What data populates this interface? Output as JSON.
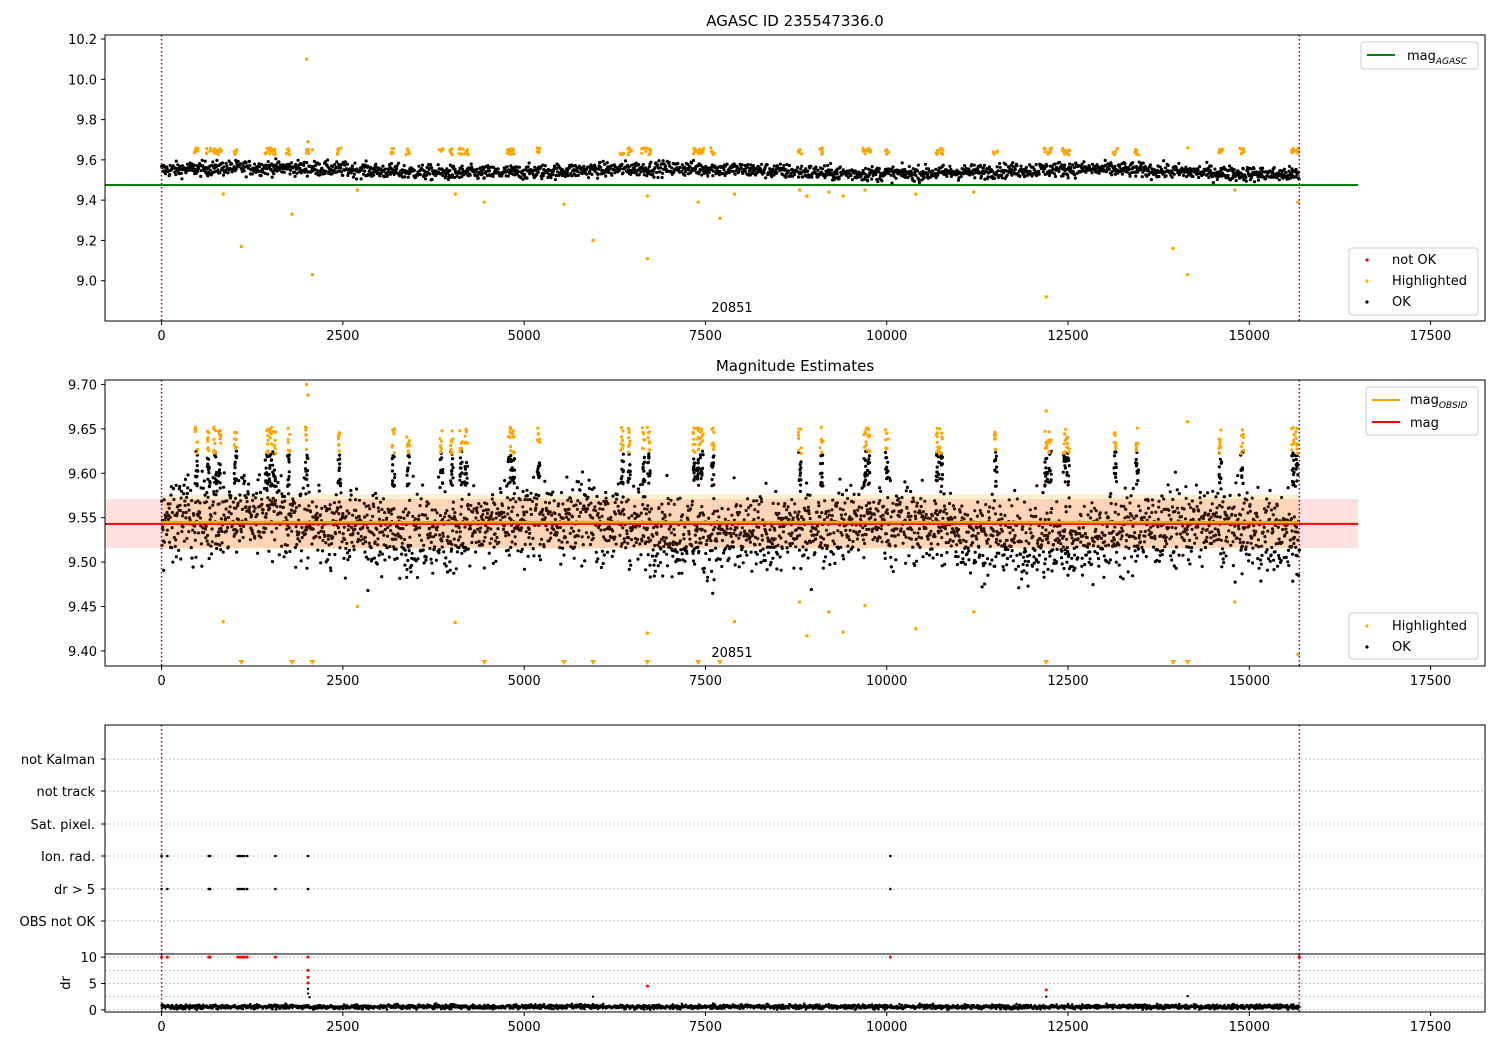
{
  "chart_data": [
    {
      "type": "scatter",
      "title": "AGASC ID 235547336.0",
      "xlabel": "",
      "ylabel": "",
      "xlim": [
        -780,
        18250
      ],
      "ylim": [
        8.8,
        10.22
      ],
      "xticks": [
        0,
        2500,
        5000,
        7500,
        10000,
        12500,
        15000,
        17500
      ],
      "xtick_labels": [
        "0",
        "2500",
        "5000",
        "7500",
        "10000",
        "12500",
        "15000",
        "17500"
      ],
      "yticks": [
        9.0,
        9.2,
        9.4,
        9.6,
        9.8,
        10.0,
        10.2
      ],
      "ytick_labels": [
        "9.0",
        "9.2",
        "9.4",
        "9.6",
        "9.8",
        "10.0",
        "10.2"
      ],
      "vlines": [
        0,
        15690
      ],
      "annotation": "20851",
      "annotation_x": 7830,
      "hline": {
        "label": "mag",
        "label_sub": "AGASC",
        "value": 9.475,
        "x": [
          -780,
          16500
        ],
        "color": "#008000"
      },
      "legend_lines": [
        {
          "label": "mag",
          "sub": "AGASC",
          "color": "#008000"
        }
      ],
      "legend_points": [
        {
          "label": "not OK",
          "color": "#ff0000"
        },
        {
          "label": "Highlighted",
          "color": "#ffa500"
        },
        {
          "label": "OK",
          "color": "#000000"
        }
      ],
      "band": {
        "center": 9.55,
        "range": [
          9.49,
          9.6
        ]
      },
      "highlighted_outliers": [
        [
          2000,
          10.1
        ],
        [
          2020,
          9.69
        ],
        [
          2080,
          9.65
        ],
        [
          850,
          9.43
        ],
        [
          1100,
          9.17
        ],
        [
          1800,
          9.33
        ],
        [
          2080,
          9.03
        ],
        [
          2700,
          9.45
        ],
        [
          4050,
          9.43
        ],
        [
          4450,
          9.39
        ],
        [
          5550,
          9.38
        ],
        [
          5950,
          9.2
        ],
        [
          6700,
          9.11
        ],
        [
          6700,
          9.42
        ],
        [
          7400,
          9.39
        ],
        [
          7700,
          9.31
        ],
        [
          7900,
          9.43
        ],
        [
          8800,
          9.45
        ],
        [
          8900,
          9.42
        ],
        [
          9200,
          9.44
        ],
        [
          9400,
          9.42
        ],
        [
          9700,
          9.45
        ],
        [
          10400,
          9.43
        ],
        [
          11200,
          9.44
        ],
        [
          12200,
          8.92
        ],
        [
          13950,
          9.16
        ],
        [
          14150,
          9.03
        ],
        [
          14150,
          9.66
        ],
        [
          14800,
          9.45
        ],
        [
          15670,
          9.39
        ]
      ],
      "highlighted_clusters": [
        480,
        650,
        740,
        800,
        1020,
        1450,
        1500,
        1550,
        1750,
        2000,
        2450,
        3200,
        3400,
        3860,
        4000,
        4130,
        4200,
        4800,
        4850,
        5200,
        6350,
        6450,
        6650,
        6720,
        7350,
        7400,
        7450,
        7600,
        8800,
        9100,
        9700,
        9750,
        10000,
        10700,
        10750,
        11500,
        12200,
        12250,
        12450,
        12500,
        13150,
        13450,
        14600,
        14900,
        15600,
        15650
      ]
    },
    {
      "type": "scatter",
      "title": "Magnitude Estimates",
      "xlabel": "",
      "ylabel": "",
      "xlim": [
        -780,
        18250
      ],
      "ylim": [
        9.383,
        9.705
      ],
      "xticks": [
        0,
        2500,
        5000,
        7500,
        10000,
        12500,
        15000,
        17500
      ],
      "xtick_labels": [
        "0",
        "2500",
        "5000",
        "7500",
        "10000",
        "12500",
        "15000",
        "17500"
      ],
      "yticks": [
        9.4,
        9.45,
        9.5,
        9.55,
        9.6,
        9.65,
        9.7
      ],
      "ytick_labels": [
        "9.40",
        "9.45",
        "9.50",
        "9.55",
        "9.60",
        "9.65",
        "9.70"
      ],
      "vlines": [
        0,
        15690
      ],
      "annotation": "20851",
      "annotation_x": 7830,
      "mag_line": {
        "label": "mag",
        "value": 9.543,
        "x": [
          -780,
          16500
        ],
        "color": "#ff0000",
        "band": [
          9.516,
          9.571
        ]
      },
      "mag_obsid_line": {
        "label": "mag",
        "label_sub": "OBSID",
        "value": 9.545,
        "x": [
          0,
          15690
        ],
        "color": "#ffa500",
        "band": [
          9.515,
          9.576
        ]
      },
      "legend_lines": [
        {
          "label": "mag",
          "sub": "OBSID",
          "color": "#ffa500"
        },
        {
          "label": "mag",
          "sub": "",
          "color": "#ff0000"
        }
      ],
      "legend_points": [
        {
          "label": "Highlighted",
          "color": "#ffa500"
        },
        {
          "label": "OK",
          "color": "#000000"
        }
      ],
      "band": {
        "center": 9.545,
        "range": [
          9.49,
          9.6
        ]
      },
      "highlighted_outliers": [
        [
          850,
          9.433
        ],
        [
          2700,
          9.45
        ],
        [
          4050,
          9.432
        ],
        [
          6700,
          9.42
        ],
        [
          7900,
          9.433
        ],
        [
          8800,
          9.455
        ],
        [
          8900,
          9.417
        ],
        [
          9200,
          9.444
        ],
        [
          9400,
          9.421
        ],
        [
          9700,
          9.451
        ],
        [
          10400,
          9.425
        ],
        [
          11200,
          9.444
        ],
        [
          14800,
          9.455
        ],
        [
          15670,
          9.396
        ],
        [
          2000,
          9.7
        ],
        [
          2020,
          9.688
        ],
        [
          12200,
          9.67
        ],
        [
          14150,
          9.658
        ]
      ],
      "clipped_markers_x": [
        1100,
        1800,
        2080,
        4450,
        5550,
        5950,
        6700,
        7400,
        7700,
        12200,
        13950,
        14150
      ],
      "highlighted_clusters": [
        480,
        650,
        740,
        800,
        1020,
        1450,
        1500,
        1550,
        1750,
        2000,
        2450,
        3200,
        3400,
        3860,
        4000,
        4130,
        4200,
        4800,
        4850,
        5200,
        6350,
        6450,
        6650,
        6720,
        7350,
        7400,
        7450,
        7600,
        8800,
        9100,
        9700,
        9750,
        10000,
        10700,
        10750,
        11500,
        12200,
        12250,
        12450,
        12500,
        13150,
        13450,
        14600,
        14900,
        15600,
        15650
      ]
    },
    {
      "type": "scatter",
      "title": "",
      "xlabel": "",
      "ylabel": "",
      "xlim": [
        -780,
        18250
      ],
      "categories": [
        "not Kalman",
        "not track",
        "Sat. pixel.",
        "Ion. rad.",
        "dr > 5",
        "OBS not OK"
      ],
      "flag_points": {
        "Ion. rad.": [
          0,
          80,
          650,
          670,
          1050,
          1080,
          1110,
          1140,
          1180,
          1570,
          2020,
          10050
        ],
        "dr > 5": [
          0,
          80,
          650,
          670,
          1050,
          1080,
          1110,
          1140,
          1180,
          1570,
          2020,
          10050
        ]
      },
      "vlines": [
        0,
        15690
      ]
    },
    {
      "type": "scatter",
      "title": "",
      "xlabel": "",
      "ylabel": "dr",
      "xlim": [
        -780,
        18250
      ],
      "ylim": [
        -0.4,
        10.6
      ],
      "xticks": [
        0,
        2500,
        5000,
        7500,
        10000,
        12500,
        15000,
        17500
      ],
      "xtick_labels": [
        "0",
        "2500",
        "5000",
        "7500",
        "10000",
        "12500",
        "15000",
        "17500"
      ],
      "yticks": [
        0,
        5,
        10
      ],
      "ytick_labels": [
        "0",
        "5",
        "10"
      ],
      "vlines": [
        0,
        15690
      ],
      "red_points": [
        [
          0,
          10
        ],
        [
          80,
          10
        ],
        [
          650,
          10
        ],
        [
          670,
          10
        ],
        [
          1050,
          10
        ],
        [
          1080,
          10
        ],
        [
          1110,
          10
        ],
        [
          1140,
          10
        ],
        [
          1180,
          10
        ],
        [
          1570,
          10
        ],
        [
          2020,
          10
        ],
        [
          2020,
          7.5
        ],
        [
          2020,
          6.2
        ],
        [
          2020,
          5.1
        ],
        [
          6700,
          4.5
        ],
        [
          10050,
          10
        ],
        [
          12200,
          3.8
        ],
        [
          15690,
          10
        ]
      ],
      "black_outliers": [
        [
          2020,
          4.0
        ],
        [
          2020,
          3.1
        ],
        [
          2040,
          2.4
        ],
        [
          5950,
          2.5
        ],
        [
          12200,
          2.5
        ],
        [
          14150,
          2.6
        ]
      ],
      "baseline": {
        "center": 0.6,
        "spread": 0.35
      }
    }
  ]
}
